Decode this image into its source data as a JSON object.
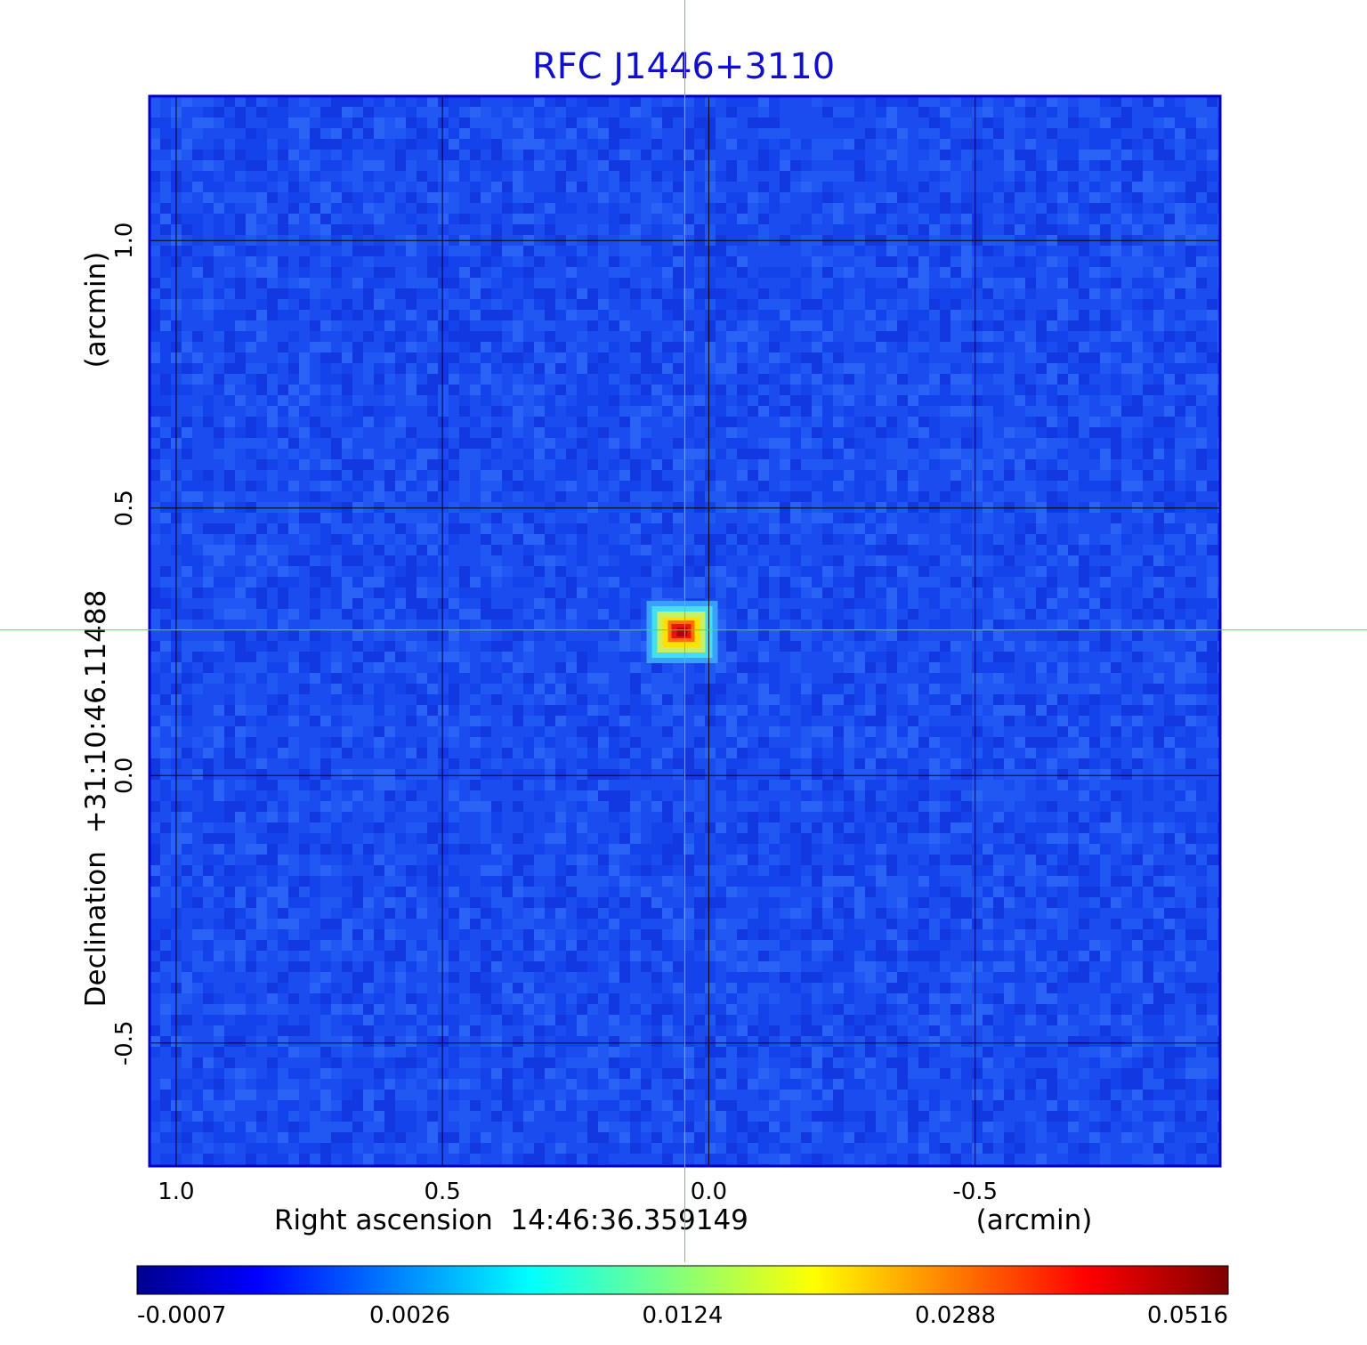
{
  "chart_data": {
    "type": "heatmap",
    "title": "RFC J1446+3110",
    "xlabel": "Right ascension  14:46:36.359149",
    "xunit": "(arcmin)",
    "ylabel": "Declination  +31:10:46.11488",
    "yunit": "(arcmin)",
    "xlim": [
      1.05,
      -0.96
    ],
    "ylim": [
      -0.73,
      1.27
    ],
    "x_ticks": [
      {
        "value": 1.0,
        "label": "1.0"
      },
      {
        "value": 0.5,
        "label": "0.5"
      },
      {
        "value": 0.0,
        "label": "0.0"
      },
      {
        "value": -0.5,
        "label": "-0.5"
      }
    ],
    "y_ticks": [
      {
        "value": 1.0,
        "label": "1.0"
      },
      {
        "value": 0.5,
        "label": "0.5"
      },
      {
        "value": 0.0,
        "label": "0.0"
      },
      {
        "value": -0.5,
        "label": "-0.5"
      }
    ],
    "grid": true,
    "source": {
      "x": 0.05,
      "y": 0.27,
      "peak": 0.0516
    },
    "crosshair": {
      "x": 0.045,
      "y": 0.272
    },
    "colorbar": {
      "orientation": "horizontal",
      "placement": "bottom",
      "colormap": "jet",
      "tick_labels": [
        "-0.0007",
        "0.0026",
        "0.0124",
        "0.0288",
        "0.0516"
      ]
    },
    "colors": {
      "title": "#1010cc",
      "frame": "#0000cc",
      "crosshair": "#33ee33",
      "grid": "#000000",
      "background_map": "#1a4cf0"
    }
  }
}
